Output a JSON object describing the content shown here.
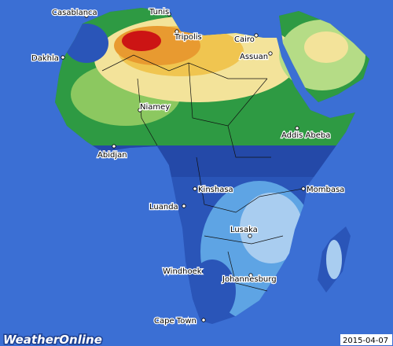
{
  "map": {
    "cities": [
      {
        "label": "Casablanca"
      },
      {
        "label": "Tunis"
      },
      {
        "label": "Tripolis"
      },
      {
        "label": "Cairo"
      },
      {
        "label": "Dakhla"
      },
      {
        "label": "Assuan"
      },
      {
        "label": "Niamey"
      },
      {
        "label": "Addis Abeba"
      },
      {
        "label": "Abidjan"
      },
      {
        "label": "Kinshasa"
      },
      {
        "label": "Mombasa"
      },
      {
        "label": "Luanda"
      },
      {
        "label": "Lusaka"
      },
      {
        "label": "Windhoek"
      },
      {
        "label": "Johannesburg"
      },
      {
        "label": "Cape Town"
      }
    ],
    "logo": "WeatherOnline",
    "date": "2015-04-07"
  }
}
